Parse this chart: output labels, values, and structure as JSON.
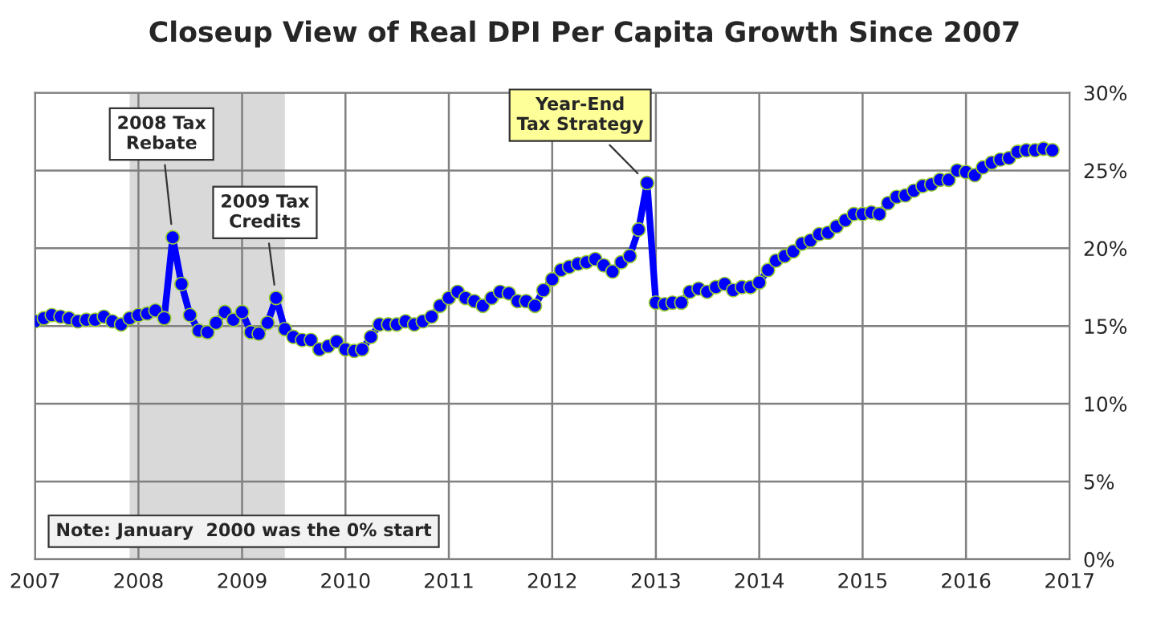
{
  "chart_data": {
    "type": "line",
    "title": "Closeup View of Real DPI Per Capita Growth Since 2007",
    "x": [
      "2007-01",
      "2007-02",
      "2007-03",
      "2007-04",
      "2007-05",
      "2007-06",
      "2007-07",
      "2007-08",
      "2007-09",
      "2007-10",
      "2007-11",
      "2007-12",
      "2008-01",
      "2008-02",
      "2008-03",
      "2008-04",
      "2008-05",
      "2008-06",
      "2008-07",
      "2008-08",
      "2008-09",
      "2008-10",
      "2008-11",
      "2008-12",
      "2009-01",
      "2009-02",
      "2009-03",
      "2009-04",
      "2009-05",
      "2009-06",
      "2009-07",
      "2009-08",
      "2009-09",
      "2009-10",
      "2009-11",
      "2009-12",
      "2010-01",
      "2010-02",
      "2010-03",
      "2010-04",
      "2010-05",
      "2010-06",
      "2010-07",
      "2010-08",
      "2010-09",
      "2010-10",
      "2010-11",
      "2010-12",
      "2011-01",
      "2011-02",
      "2011-03",
      "2011-04",
      "2011-05",
      "2011-06",
      "2011-07",
      "2011-08",
      "2011-09",
      "2011-10",
      "2011-11",
      "2011-12",
      "2012-01",
      "2012-02",
      "2012-03",
      "2012-04",
      "2012-05",
      "2012-06",
      "2012-07",
      "2012-08",
      "2012-09",
      "2012-10",
      "2012-11",
      "2012-12",
      "2013-01",
      "2013-02",
      "2013-03",
      "2013-04",
      "2013-05",
      "2013-06",
      "2013-07",
      "2013-08",
      "2013-09",
      "2013-10",
      "2013-11",
      "2013-12",
      "2014-01",
      "2014-02",
      "2014-03",
      "2014-04",
      "2014-05",
      "2014-06",
      "2014-07",
      "2014-08",
      "2014-09",
      "2014-10",
      "2014-11",
      "2014-12",
      "2015-01",
      "2015-02",
      "2015-03",
      "2015-04",
      "2015-05",
      "2015-06",
      "2015-07",
      "2015-08",
      "2015-09",
      "2015-10",
      "2015-11",
      "2015-12",
      "2016-01",
      "2016-02",
      "2016-03",
      "2016-04",
      "2016-05",
      "2016-06",
      "2016-07",
      "2016-08",
      "2016-09",
      "2016-10",
      "2016-11"
    ],
    "series": [
      {
        "color": "#0000ff",
        "values": [
          15.3,
          15.5,
          15.7,
          15.6,
          15.5,
          15.3,
          15.4,
          15.4,
          15.6,
          15.3,
          15.1,
          15.5,
          15.7,
          15.8,
          16.0,
          15.5,
          20.7,
          17.7,
          15.7,
          14.7,
          14.6,
          15.2,
          15.9,
          15.4,
          15.9,
          14.6,
          14.5,
          15.2,
          16.8,
          14.8,
          14.3,
          14.1,
          14.1,
          13.5,
          13.7,
          14.0,
          13.5,
          13.4,
          13.5,
          14.3,
          15.1,
          15.1,
          15.1,
          15.3,
          15.1,
          15.3,
          15.6,
          16.3,
          16.8,
          17.2,
          16.8,
          16.6,
          16.3,
          16.8,
          17.2,
          17.1,
          16.6,
          16.6,
          16.3,
          17.3,
          18.0,
          18.6,
          18.8,
          19.0,
          19.1,
          19.3,
          18.9,
          18.5,
          19.1,
          19.5,
          21.2,
          24.2,
          16.5,
          16.4,
          16.5,
          16.5,
          17.2,
          17.4,
          17.2,
          17.5,
          17.7,
          17.3,
          17.5,
          17.5,
          17.8,
          18.6,
          19.2,
          19.5,
          19.8,
          20.3,
          20.5,
          20.9,
          21.0,
          21.4,
          21.8,
          22.2,
          22.2,
          22.3,
          22.2,
          22.9,
          23.3,
          23.4,
          23.7,
          24.0,
          24.1,
          24.4,
          24.4,
          25.0,
          24.9,
          24.7,
          25.2,
          25.5,
          25.7,
          25.8,
          26.2,
          26.3,
          26.3,
          26.4,
          26.3
        ]
      }
    ],
    "xlim": [
      "2007",
      "2017"
    ],
    "xticks": [
      "2007",
      "2008",
      "2009",
      "2010",
      "2011",
      "2012",
      "2013",
      "2014",
      "2015",
      "2016",
      "2017"
    ],
    "ylim": [
      0,
      30
    ],
    "yticks": [
      {
        "value": 0,
        "label": "0%"
      },
      {
        "value": 5,
        "label": "5%"
      },
      {
        "value": 10,
        "label": "10%"
      },
      {
        "value": 15,
        "label": "15%"
      },
      {
        "value": 20,
        "label": "20%"
      },
      {
        "value": 25,
        "label": "25%"
      },
      {
        "value": 30,
        "label": "30%"
      }
    ],
    "grid": true,
    "marker": "circle",
    "line_style": "solid",
    "legend": false,
    "bands": [
      {
        "axis": "x",
        "from": "2007-12",
        "to": "2009-06",
        "color": "#d9d9d9"
      }
    ],
    "annotations": [
      {
        "text": "2008 Tax\nRebate",
        "x": "2008-05",
        "y": 20.7
      },
      {
        "text": "2009 Tax\nCredits",
        "x": "2009-05",
        "y": 16.8
      },
      {
        "text": "Year-End\nTax Strategy",
        "x": "2012-12",
        "y": 24.2
      },
      "Note: January  2000 was the 0% start"
    ]
  }
}
